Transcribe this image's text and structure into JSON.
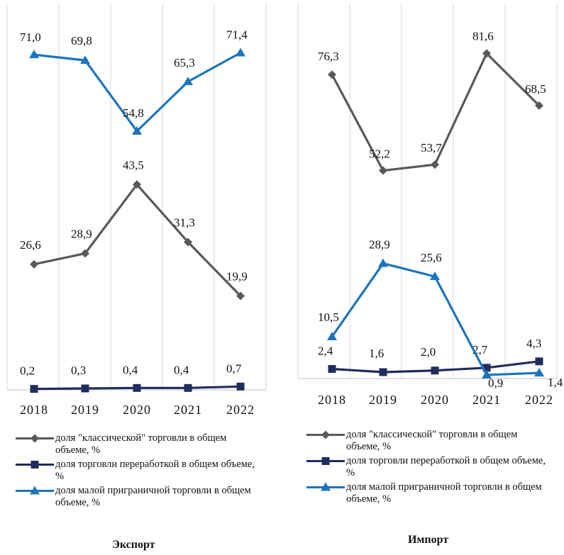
{
  "chart_data": [
    {
      "type": "line",
      "title": "Экспорт",
      "categories": [
        "2018",
        "2019",
        "2020",
        "2021",
        "2022"
      ],
      "ylim": [
        0,
        75
      ],
      "grid": "vertical",
      "legend_position": "bottom",
      "series": [
        {
          "name": "доля \"классической\" торговли в общем объеме, %",
          "values": [
            26.6,
            28.9,
            43.5,
            31.3,
            19.9
          ],
          "labels": [
            "26,6",
            "28,9",
            "43,5",
            "31,3",
            "19,9"
          ],
          "color": "#595959",
          "marker": "diamond"
        },
        {
          "name": "доля торговли переработкой в общем объеме, %",
          "values": [
            0.2,
            0.3,
            0.4,
            0.4,
            0.7
          ],
          "labels": [
            "0,2",
            "0,3",
            "0,4",
            "0,4",
            "0,7"
          ],
          "color": "#1f2d5c",
          "marker": "square"
        },
        {
          "name": "доля малой приграничной торговли  в общем объеме, %",
          "values": [
            71.0,
            69.8,
            54.8,
            65.3,
            71.4
          ],
          "labels": [
            "71,0",
            "69,8",
            "54,8",
            "65,3",
            "71,4"
          ],
          "color": "#1c75bc",
          "marker": "triangle"
        }
      ]
    },
    {
      "type": "line",
      "title": "Импорт",
      "categories": [
        "2018",
        "2019",
        "2020",
        "2021",
        "2022"
      ],
      "ylim": [
        0,
        85
      ],
      "grid": "vertical",
      "legend_position": "bottom",
      "series": [
        {
          "name": "доля \"классической\" торговли в общем объеме, %",
          "values": [
            76.3,
            52.2,
            53.7,
            81.6,
            68.5
          ],
          "labels": [
            "76,3",
            "52,2",
            "53,7",
            "81,6",
            "68,5"
          ],
          "color": "#595959",
          "marker": "diamond"
        },
        {
          "name": "доля торговли переработкой в общем объеме, %",
          "values": [
            2.4,
            1.6,
            2.0,
            2.7,
            4.3
          ],
          "labels": [
            "2,4",
            "1,6",
            "2,0",
            "2,7",
            "4,3"
          ],
          "color": "#1f2d5c",
          "marker": "square"
        },
        {
          "name": "доля малой приграничной торговли  в общем объеме, %",
          "values": [
            10.5,
            28.9,
            25.6,
            0.9,
            1.4
          ],
          "labels": [
            "10,5",
            "28,9",
            "25,6",
            "0,9",
            "1,4"
          ],
          "color": "#1c75bc",
          "marker": "triangle"
        }
      ]
    }
  ]
}
